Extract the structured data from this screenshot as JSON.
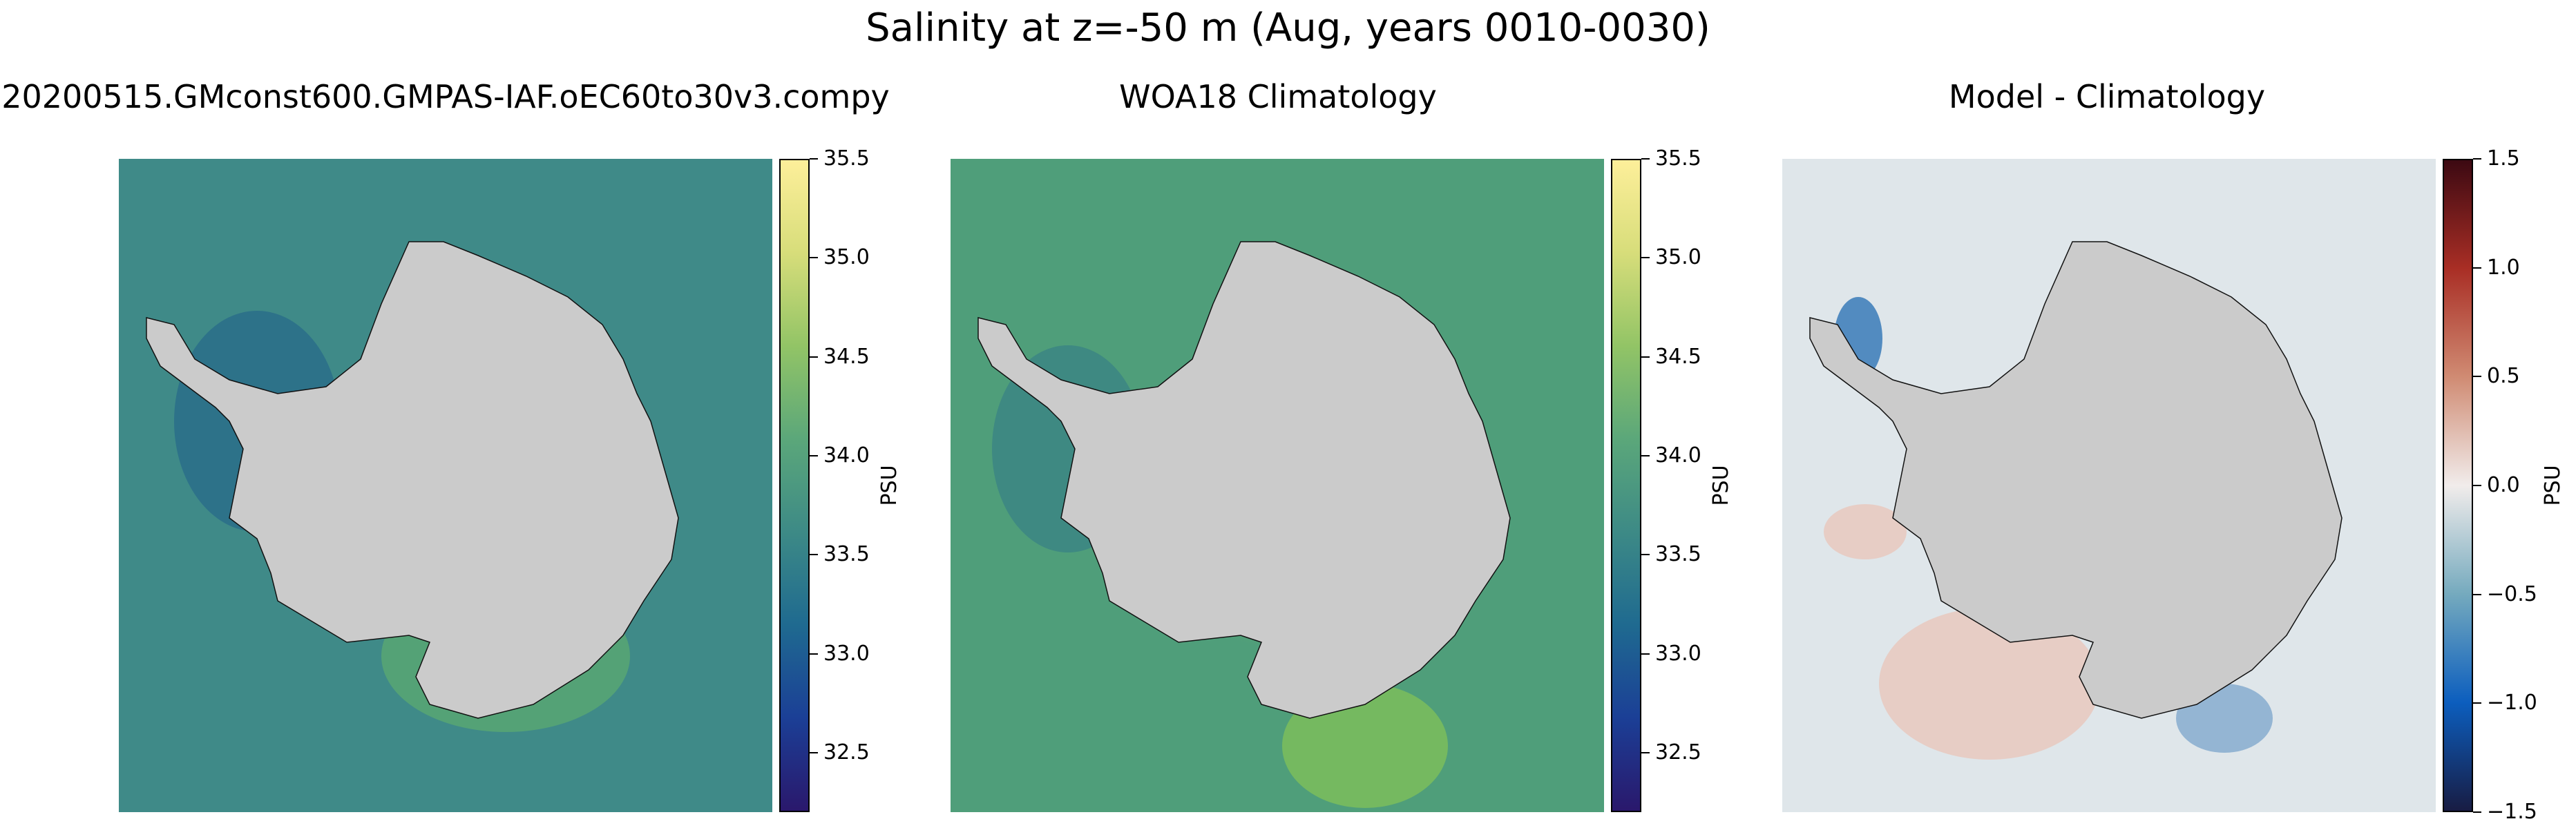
{
  "figure": {
    "suptitle": "Salinity at z=-50 m (Aug, years 0010-0030)"
  },
  "panels": [
    {
      "id": "model",
      "title": "20200515.GMconst600.GMPAS-IAF.oEC60to30v3.compy",
      "colormap": "haline",
      "colorbar": {
        "label": "PSU",
        "vmin": 32.2,
        "vmax": 35.5,
        "ticks": [
          "32.5",
          "33.0",
          "33.5",
          "34.0",
          "34.5",
          "35.0",
          "35.5"
        ],
        "tick_values": [
          32.5,
          33.0,
          33.5,
          34.0,
          34.5,
          35.0,
          35.5
        ]
      },
      "ocean_color": "#3f8a88",
      "coastal_high_color": "#63b36b",
      "coastal_low_color": "#1f5f8a"
    },
    {
      "id": "obs",
      "title": "WOA18 Climatology",
      "colormap": "haline",
      "colorbar": {
        "label": "PSU",
        "vmin": 32.2,
        "vmax": 35.5,
        "ticks": [
          "32.5",
          "33.0",
          "33.5",
          "34.0",
          "34.5",
          "35.0",
          "35.5"
        ],
        "tick_values": [
          32.5,
          33.0,
          33.5,
          34.0,
          34.5,
          35.0,
          35.5
        ]
      },
      "ocean_color": "#4f9e7a",
      "coastal_high_color": "#86c455",
      "coastal_low_color": "#2a6e8c"
    },
    {
      "id": "bias",
      "title": "Model - Climatology",
      "colormap": "balance",
      "colorbar": {
        "label": "PSU",
        "vmin": -1.5,
        "vmax": 1.5,
        "ticks": [
          "−1.5",
          "−1.0",
          "−0.5",
          "0.0",
          "0.5",
          "1.0",
          "1.5"
        ],
        "tick_values": [
          -1.5,
          -1.0,
          -0.5,
          0.0,
          0.5,
          1.0,
          1.5
        ]
      },
      "ocean_color": "#dfe6ea",
      "coastal_high_color": "#e9c2b5",
      "coastal_low_color": "#3a7ab8"
    }
  ],
  "land_color": "#cbcbcb"
}
